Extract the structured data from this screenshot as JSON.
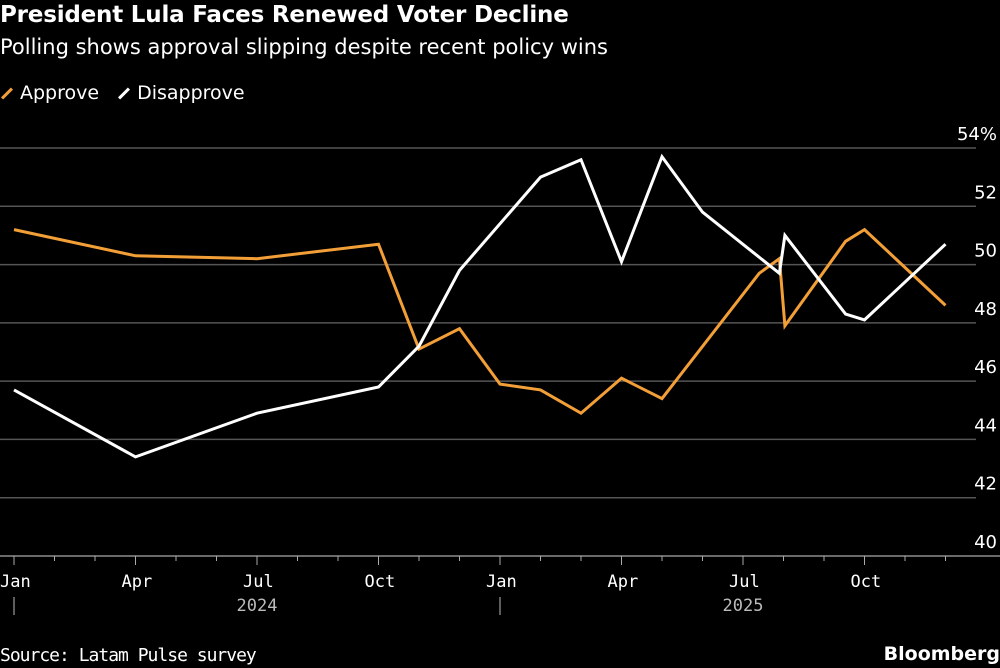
{
  "chart_data": {
    "type": "line",
    "title": "President Lula Faces Renewed Voter Decline",
    "subtitle": "Polling shows approval slipping despite recent policy wins",
    "source": "Source: Latam Pulse survey",
    "brand": "Bloomberg",
    "ylim": [
      40,
      54
    ],
    "y_ticks": [
      "54%",
      "52",
      "50",
      "48",
      "46",
      "44",
      "42",
      "40"
    ],
    "y_tick_values": [
      54,
      52,
      50,
      48,
      46,
      44,
      42,
      40
    ],
    "x_ticks": [
      "Jan",
      "Apr",
      "Jul",
      "Oct",
      "Jan",
      "Apr",
      "Jul",
      "Oct"
    ],
    "x_tick_dates": [
      "2024-01-01",
      "2024-04-01",
      "2024-07-01",
      "2024-10-01",
      "2025-01-01",
      "2025-04-01",
      "2025-07-01",
      "2025-10-01"
    ],
    "x_years": [
      {
        "label": "2024",
        "date": "2024-07-01"
      },
      {
        "label": "2025",
        "date": "2025-07-01"
      }
    ],
    "grid": true,
    "legend": "top-left",
    "series": [
      {
        "name": "Approve",
        "color": "#f39f38",
        "points": [
          [
            "2024-01-01",
            51.2
          ],
          [
            "2024-04-01",
            50.3
          ],
          [
            "2024-07-01",
            50.2
          ],
          [
            "2024-10-01",
            50.7
          ],
          [
            "2024-11-01",
            47.1
          ],
          [
            "2024-12-01",
            47.8
          ],
          [
            "2025-01-01",
            45.9
          ],
          [
            "2025-02-01",
            45.7
          ],
          [
            "2025-03-01",
            44.9
          ],
          [
            "2025-04-01",
            46.1
          ],
          [
            "2025-05-01",
            45.4
          ],
          [
            "2025-07-13",
            49.7
          ],
          [
            "2025-07-28",
            50.2
          ],
          [
            "2025-08-02",
            47.9
          ],
          [
            "2025-09-17",
            50.8
          ],
          [
            "2025-10-01",
            51.2
          ],
          [
            "2025-12-01",
            48.6
          ]
        ]
      },
      {
        "name": "Disapprove",
        "color": "#ffffff",
        "points": [
          [
            "2024-01-01",
            45.7
          ],
          [
            "2024-04-01",
            43.4
          ],
          [
            "2024-07-01",
            44.9
          ],
          [
            "2024-10-01",
            45.8
          ],
          [
            "2024-11-01",
            47.2
          ],
          [
            "2024-12-01",
            49.8
          ],
          [
            "2025-02-01",
            53.0
          ],
          [
            "2025-03-01",
            53.6
          ],
          [
            "2025-04-01",
            50.1
          ],
          [
            "2025-05-01",
            53.7
          ],
          [
            "2025-06-01",
            51.8
          ],
          [
            "2025-07-28",
            49.7
          ],
          [
            "2025-08-02",
            51.0
          ],
          [
            "2025-09-17",
            48.3
          ],
          [
            "2025-10-01",
            48.1
          ],
          [
            "2025-12-01",
            50.7
          ]
        ]
      }
    ]
  }
}
